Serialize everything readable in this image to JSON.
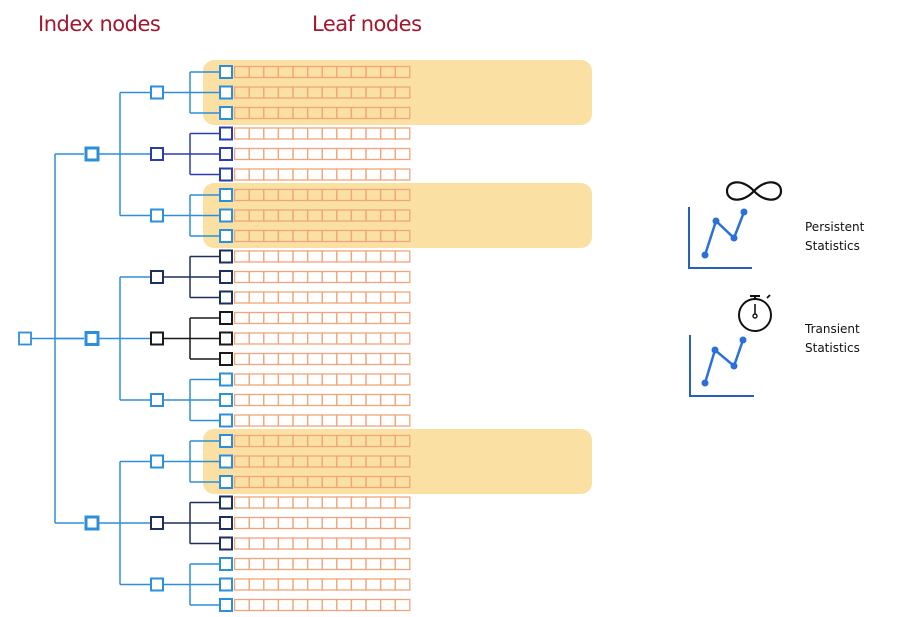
{
  "headings": {
    "index": "Index nodes",
    "leaf": "Leaf nodes"
  },
  "colors": {
    "heading": "#a3162d",
    "highlight": "#fbe0a3",
    "leaf_cell": "#f0a67a",
    "index_blue": "#2d8fd9",
    "index_dark_blue": "#2a3db0",
    "index_navy": "#1d2f5c",
    "index_black": "#1a1a1a",
    "chart_line": "#2b6fd8",
    "chart_axis": "#2a5fb8"
  },
  "legend": {
    "persistent": {
      "line1": "Persistent",
      "line2": "Statistics",
      "icon": "infinity-icon"
    },
    "transient": {
      "line1": "Transient",
      "line2": "Statistics",
      "icon": "stopwatch-icon"
    }
  },
  "tree": {
    "root_color": "index_blue",
    "level1": [
      {
        "color": "index_blue",
        "children": [
          {
            "color": "index_blue",
            "leaf_colors": [
              "index_blue",
              "index_blue",
              "index_blue"
            ],
            "highlighted": true
          },
          {
            "color": "index_dark_blue",
            "leaf_colors": [
              "index_dark_blue",
              "index_dark_blue",
              "index_dark_blue"
            ],
            "highlighted": false
          },
          {
            "color": "index_blue",
            "leaf_colors": [
              "index_blue",
              "index_blue",
              "index_blue"
            ],
            "highlighted": true
          }
        ]
      },
      {
        "color": "index_blue",
        "children": [
          {
            "color": "index_navy",
            "leaf_colors": [
              "index_navy",
              "index_navy",
              "index_navy"
            ],
            "highlighted": false
          },
          {
            "color": "index_black",
            "leaf_colors": [
              "index_black",
              "index_black",
              "index_black"
            ],
            "highlighted": false
          },
          {
            "color": "index_blue",
            "leaf_colors": [
              "index_blue",
              "index_blue",
              "index_blue"
            ],
            "highlighted": false
          }
        ]
      },
      {
        "color": "index_blue",
        "children": [
          {
            "color": "index_blue",
            "leaf_colors": [
              "index_blue",
              "index_blue",
              "index_blue"
            ],
            "highlighted": true
          },
          {
            "color": "index_navy",
            "leaf_colors": [
              "index_navy",
              "index_navy",
              "index_navy"
            ],
            "highlighted": false
          },
          {
            "color": "index_blue",
            "leaf_colors": [
              "index_blue",
              "index_blue",
              "index_blue"
            ],
            "highlighted": false
          }
        ]
      }
    ],
    "cells_per_leaf": 12
  }
}
